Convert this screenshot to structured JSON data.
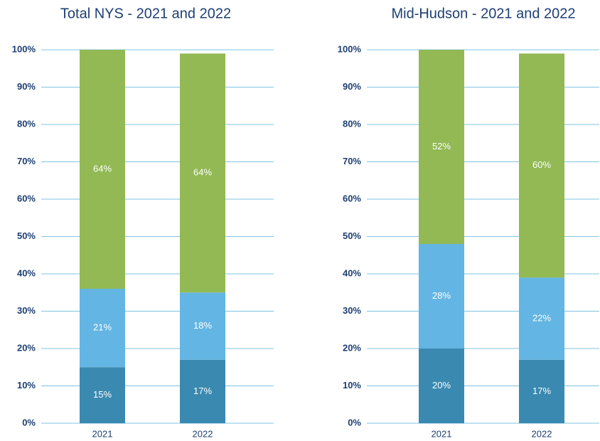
{
  "chart_data": [
    {
      "type": "stacked_bar",
      "title": "Total NYS - 2021 and 2022",
      "categories": [
        "2021",
        "2022"
      ],
      "series": [
        {
          "color": "#3a89b0",
          "values": [
            15,
            17
          ],
          "value_labels": [
            "15%",
            "17%"
          ]
        },
        {
          "color": "#63b5e3",
          "values": [
            21,
            18
          ],
          "value_labels": [
            "21%",
            "18%"
          ]
        },
        {
          "color": "#92b954",
          "values": [
            64,
            64
          ],
          "value_labels": [
            "64%",
            "64%"
          ]
        }
      ],
      "ylim": [
        0,
        100
      ],
      "yticks": [
        {
          "value": 0,
          "label": "0%"
        },
        {
          "value": 10,
          "label": "10%"
        },
        {
          "value": 20,
          "label": "20%"
        },
        {
          "value": 30,
          "label": "30%"
        },
        {
          "value": 40,
          "label": "40%"
        },
        {
          "value": 50,
          "label": "50%"
        },
        {
          "value": 60,
          "label": "60%"
        },
        {
          "value": 70,
          "label": "70%"
        },
        {
          "value": 80,
          "label": "80%"
        },
        {
          "value": 90,
          "label": "90%"
        },
        {
          "value": 100,
          "label": "100%"
        }
      ],
      "grid": true
    },
    {
      "type": "stacked_bar",
      "title": "Mid-Hudson - 2021 and 2022",
      "categories": [
        "2021",
        "2022"
      ],
      "series": [
        {
          "color": "#3a89b0",
          "values": [
            20,
            17
          ],
          "value_labels": [
            "20%",
            "17%"
          ]
        },
        {
          "color": "#63b5e3",
          "values": [
            28,
            22
          ],
          "value_labels": [
            "28%",
            "22%"
          ]
        },
        {
          "color": "#92b954",
          "values": [
            52,
            60
          ],
          "value_labels": [
            "52%",
            "60%"
          ]
        }
      ],
      "ylim": [
        0,
        100
      ],
      "yticks": [
        {
          "value": 0,
          "label": "0%"
        },
        {
          "value": 10,
          "label": "10%"
        },
        {
          "value": 20,
          "label": "20%"
        },
        {
          "value": 30,
          "label": "30%"
        },
        {
          "value": 40,
          "label": "40%"
        },
        {
          "value": 50,
          "label": "50%"
        },
        {
          "value": 60,
          "label": "60%"
        },
        {
          "value": 70,
          "label": "70%"
        },
        {
          "value": 80,
          "label": "80%"
        },
        {
          "value": 90,
          "label": "90%"
        },
        {
          "value": 100,
          "label": "100%"
        }
      ],
      "grid": true
    }
  ]
}
